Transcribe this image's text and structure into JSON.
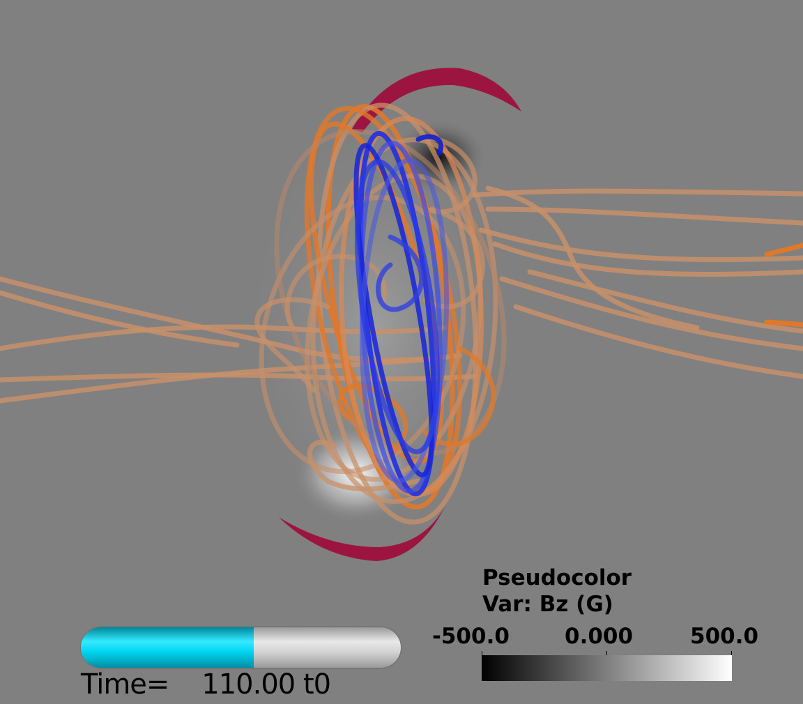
{
  "legend": {
    "plot_type": "Pseudocolor",
    "variable": "Var: Bz (G)",
    "min_label": "-500.0",
    "mid_label": "0.000",
    "max_label": "500.0",
    "colormap_colors": [
      "#000000",
      "#7f7f7f",
      "#ffffff"
    ]
  },
  "time_slider": {
    "progress": 0.54,
    "label": "Time=    110.00 t0",
    "fill_color": "#00e0f8",
    "track_color": "#d8d8d8"
  },
  "scene": {
    "background_color": "#808080",
    "tube_colors": [
      "#c8906a",
      "#e0782a",
      "#3040e0"
    ],
    "arc_color": "#9b1540"
  }
}
